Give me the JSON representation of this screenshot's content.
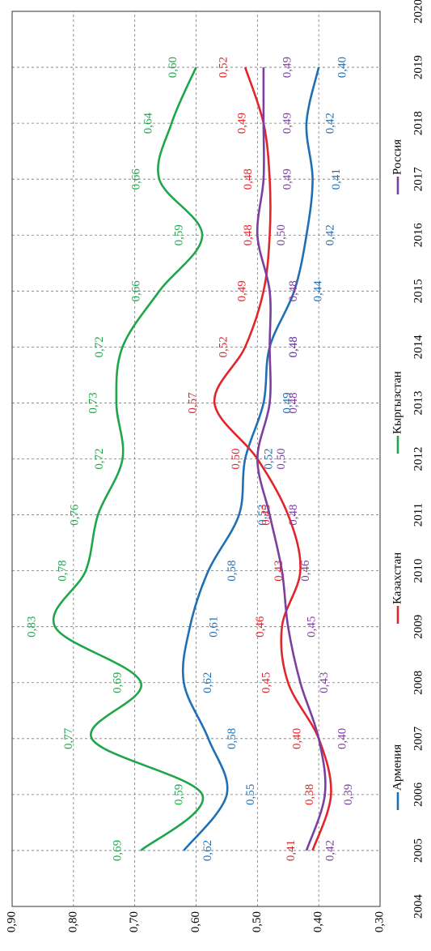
{
  "chart_data": {
    "type": "line",
    "x": [
      2005,
      2006,
      2007,
      2008,
      2009,
      2010,
      2011,
      2012,
      2013,
      2014,
      2015,
      2016,
      2017,
      2018,
      2019
    ],
    "xlim": [
      2004,
      2020
    ],
    "xticks": [
      2004,
      2005,
      2006,
      2007,
      2008,
      2009,
      2010,
      2011,
      2012,
      2013,
      2014,
      2015,
      2016,
      2017,
      2018,
      2019,
      2020
    ],
    "ylim": [
      0.3,
      0.9
    ],
    "yticks": [
      {
        "value": 0.3,
        "label": "0,30"
      },
      {
        "value": 0.4,
        "label": "0,40"
      },
      {
        "value": 0.5,
        "label": "0,50"
      },
      {
        "value": 0.6,
        "label": "0,60"
      },
      {
        "value": 0.7,
        "label": "0,70"
      },
      {
        "value": 0.8,
        "label": "0,80"
      },
      {
        "value": 0.9,
        "label": "0,90"
      }
    ],
    "grid": true,
    "series": [
      {
        "name": "Армения",
        "color": "#1f6fb5",
        "values": [
          0.62,
          0.55,
          0.58,
          0.62,
          0.61,
          0.58,
          0.53,
          0.52,
          0.49,
          0.48,
          0.44,
          0.42,
          0.41,
          0.42,
          0.4
        ],
        "value_labels": [
          "0,62",
          "0,55",
          "0,58",
          "0,62",
          "0,61",
          "0,58",
          "0,53",
          "0,52",
          "0,49",
          "0,48",
          "0,44",
          "0,42",
          "0,41",
          "0,42",
          "0,40"
        ]
      },
      {
        "name": "Казахстан",
        "color": "#e0262b",
        "values": [
          0.41,
          0.38,
          0.4,
          0.45,
          0.46,
          0.43,
          0.45,
          0.5,
          0.57,
          0.52,
          0.49,
          0.48,
          0.48,
          0.49,
          0.52
        ],
        "value_labels": [
          "0,41",
          "0,38",
          "0,40",
          "0,45",
          "0,46",
          "0,43",
          "0,45",
          "0,50",
          "0,57",
          "0,52",
          "0,49",
          "0,48",
          "0,48",
          "0,49",
          "0,52"
        ]
      },
      {
        "name": "Кыргызстан",
        "color": "#1fa64a",
        "values": [
          0.69,
          0.59,
          0.77,
          0.69,
          0.83,
          0.78,
          0.76,
          0.72,
          0.73,
          0.72,
          0.66,
          0.59,
          0.66,
          0.64,
          0.6
        ],
        "value_labels": [
          "0,69",
          "0,59",
          "0,77",
          "0,69",
          "0,83",
          "0,78",
          "0,76",
          "0,72",
          "0,73",
          "0,72",
          "0,66",
          "0,59",
          "0,66",
          "0,64",
          "0,60"
        ]
      },
      {
        "name": "Россия",
        "color": "#7b3f9e",
        "values": [
          0.42,
          0.39,
          0.4,
          0.43,
          0.45,
          0.46,
          0.48,
          0.5,
          0.48,
          0.48,
          0.48,
          0.5,
          0.49,
          0.49,
          0.49
        ],
        "value_labels": [
          "0,42",
          "0,39",
          "0,40",
          "0,43",
          "0,45",
          "0,46",
          "0,48",
          "0,50",
          "0,48",
          "0,48",
          "0,48",
          "0,50",
          "0,49",
          "0,49",
          "0,49"
        ]
      }
    ]
  }
}
